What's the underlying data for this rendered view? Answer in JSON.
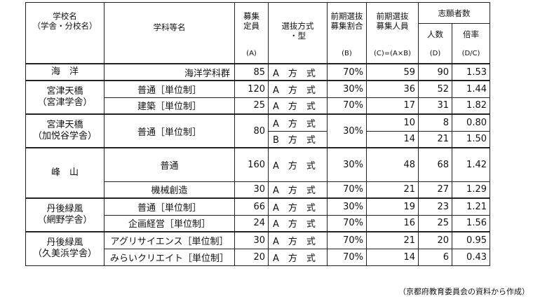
{
  "header": {
    "school_line1": "学校名",
    "school_line2": "（学舎・分校名）",
    "dept": "学科等名",
    "capacity_line1": "募集",
    "capacity_line2": "定員",
    "capacity_code": "(A)",
    "method_line1": "選抜方式",
    "method_line2": "・型",
    "ratio_line1": "前期選抜",
    "ratio_line2": "募集割合",
    "ratio_code": "(B)",
    "early_line1": "前期選抜",
    "early_line2": "募集人員",
    "early_code": "(C)=(A×B)",
    "applicants_group": "志願者数",
    "applicants": "人数",
    "applicants_code": "(D)",
    "rate": "倍率",
    "rate_code": "(D/C)"
  },
  "rows": {
    "r1": {
      "school": "海　洋",
      "dept": "海洋学科群",
      "capacity": "85",
      "method": "A　方　式",
      "ratio": "70%",
      "early": "59",
      "applicants": "90",
      "rate": "1.53"
    },
    "r2": {
      "school1": "宮津天橋",
      "school2": "（宮津学舎）",
      "dept": "普通［単位制］",
      "capacity": "120",
      "method": "A　方　式",
      "ratio": "30%",
      "early": "36",
      "applicants": "52",
      "rate": "1.44"
    },
    "r3": {
      "dept": "建築［単位制］",
      "capacity": "25",
      "method": "A　方　式",
      "ratio": "70%",
      "early": "17",
      "applicants": "31",
      "rate": "1.82"
    },
    "r4": {
      "school1": "宮津天橋",
      "school2": "（加悦谷学舎）",
      "dept": "普通［単位制］",
      "capacity": "80",
      "method": "A　方　式",
      "ratio": "30%",
      "early": "10",
      "applicants": "8",
      "rate": "0.80"
    },
    "r5": {
      "method": "B　方　式",
      "early": "14",
      "applicants": "21",
      "rate": "1.50"
    },
    "r6": {
      "school": "峰　山",
      "dept": "普通",
      "capacity": "160",
      "method": "A　方　式",
      "ratio": "30%",
      "early": "48",
      "applicants": "68",
      "rate": "1.42"
    },
    "r7": {
      "dept": "機械創造",
      "capacity": "30",
      "method": "A　方　式",
      "ratio": "70%",
      "early": "21",
      "applicants": "27",
      "rate": "1.29"
    },
    "r8": {
      "school1": "丹後緑風",
      "school2": "（網野学舎）",
      "dept": "普通［単位制］",
      "capacity": "66",
      "method": "A　方　式",
      "ratio": "30%",
      "early": "19",
      "applicants": "23",
      "rate": "1.21"
    },
    "r9": {
      "dept": "企画経営［単位制］",
      "capacity": "24",
      "method": "A　方　式",
      "ratio": "70%",
      "early": "16",
      "applicants": "25",
      "rate": "1.56"
    },
    "r10": {
      "school1": "丹後緑風",
      "school2": "（久美浜学舎）",
      "dept": "アグリサイエンス［単位制］",
      "capacity": "30",
      "method": "A　方　式",
      "ratio": "70%",
      "early": "21",
      "applicants": "20",
      "rate": "0.95"
    },
    "r11": {
      "dept": "みらいクリエイト［単位制］",
      "capacity": "20",
      "method": "A　方　式",
      "ratio": "70%",
      "early": "14",
      "applicants": "6",
      "rate": "0.43"
    }
  },
  "caption": "（京都府教育委員会の資料から作成）"
}
